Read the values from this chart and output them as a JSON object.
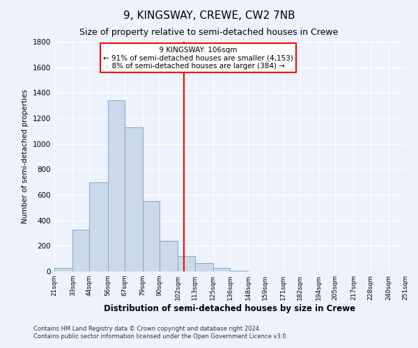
{
  "title": "9, KINGSWAY, CREWE, CW2 7NB",
  "subtitle": "Size of property relative to semi-detached houses in Crewe",
  "xlabel": "Distribution of semi-detached houses by size in Crewe",
  "ylabel": "Number of semi-detached properties",
  "bar_color": "#ccd9e8",
  "bar_edge_color": "#7aaac8",
  "background_color": "#eef2fa",
  "grid_color": "#ffffff",
  "vline_x": 106,
  "vline_color": "red",
  "annotation_title": "9 KINGSWAY: 106sqm",
  "annotation_line1": "← 91% of semi-detached houses are smaller (4,153)",
  "annotation_line2": "8% of semi-detached houses are larger (384) →",
  "bin_edges": [
    21,
    33,
    44,
    56,
    67,
    79,
    90,
    102,
    113,
    125,
    136,
    148,
    159,
    171,
    182,
    194,
    205,
    217,
    228,
    240,
    251
  ],
  "bin_counts": [
    25,
    325,
    700,
    1340,
    1130,
    550,
    240,
    120,
    65,
    25,
    5,
    0,
    0,
    0,
    0,
    0,
    0,
    0,
    0,
    0
  ],
  "tick_labels": [
    "21sqm",
    "33sqm",
    "44sqm",
    "56sqm",
    "67sqm",
    "79sqm",
    "90sqm",
    "102sqm",
    "113sqm",
    "125sqm",
    "136sqm",
    "148sqm",
    "159sqm",
    "171sqm",
    "182sqm",
    "194sqm",
    "205sqm",
    "217sqm",
    "228sqm",
    "240sqm",
    "251sqm"
  ],
  "ylim": [
    0,
    1800
  ],
  "yticks": [
    0,
    200,
    400,
    600,
    800,
    1000,
    1200,
    1400,
    1600,
    1800
  ],
  "footer1": "Contains HM Land Registry data © Crown copyright and database right 2024.",
  "footer2": "Contains public sector information licensed under the Open Government Licence v3.0."
}
